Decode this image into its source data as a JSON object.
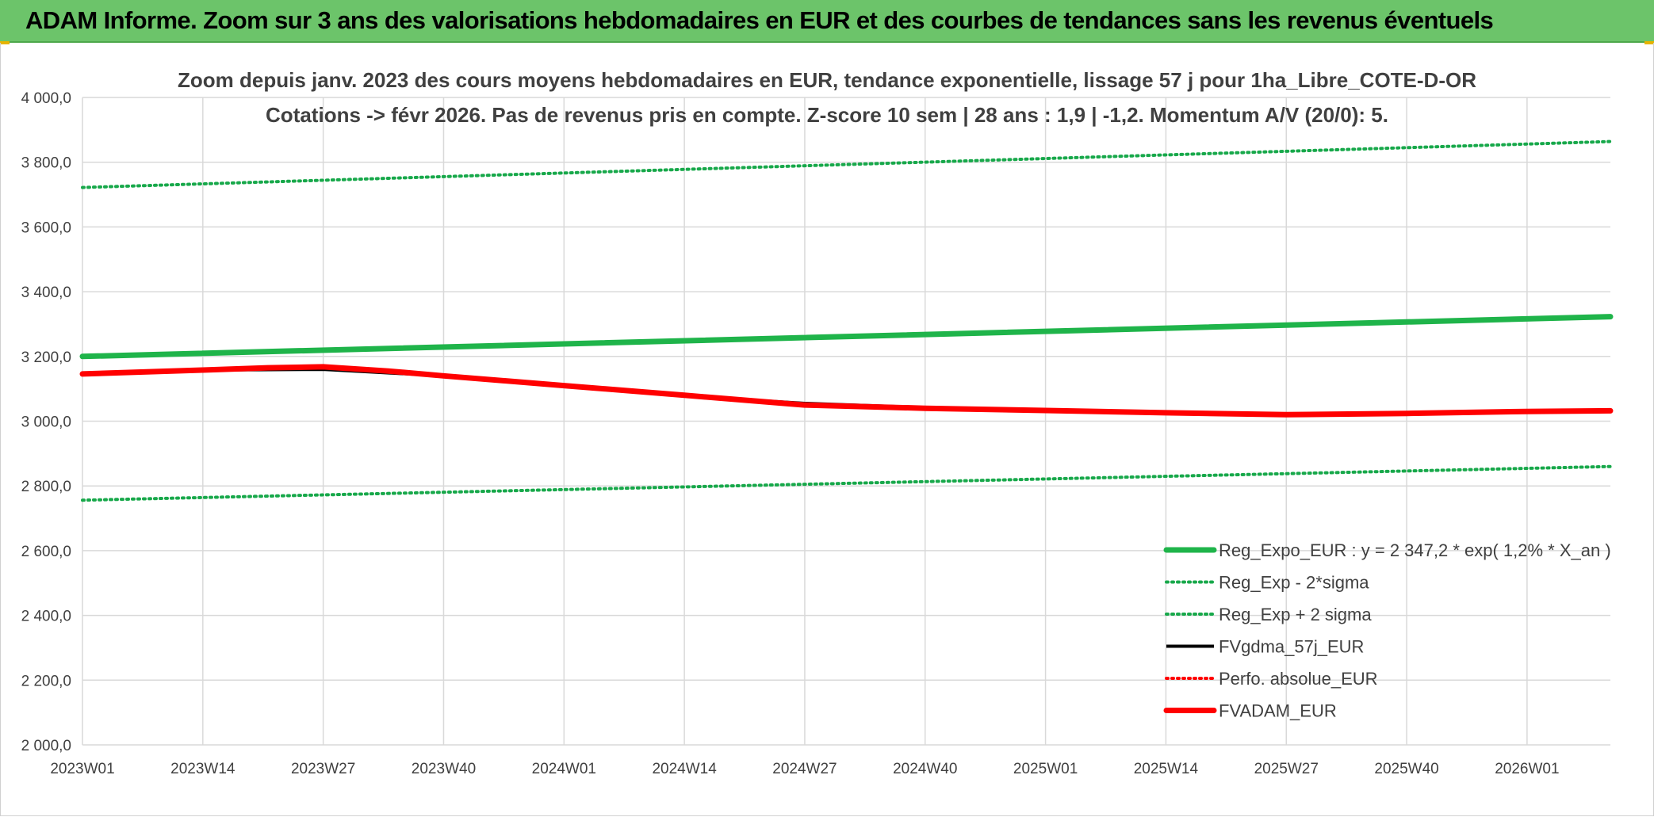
{
  "banner": {
    "title": "ADAM Informe. Zoom sur 3 ans des valorisations hebdomadaires en EUR et des courbes de tendances sans les revenus éventuels"
  },
  "colors": {
    "banner_bg": "#6cc46a",
    "reg_green": "#1fb44a",
    "sigma_green": "#17a84a",
    "black": "#000000",
    "red": "#ff0000",
    "grid": "#d9d9d9"
  },
  "chart_data": {
    "type": "line",
    "title_lines": [
      "Zoom depuis janv. 2023 des cours moyens hebdomadaires en EUR, tendance exponentielle, lissage 57 j pour 1ha_Libre_COTE-D-OR",
      "Cotations -> févr 2026. Pas de revenus pris en compte. Z-score 10 sem | 28 ans : 1,9 | -1,2. Momentum A/V (20/0): 5."
    ],
    "ylim": [
      2000,
      4000
    ],
    "y_ticks": [
      "2 000,0",
      "2 200,0",
      "2 400,0",
      "2 600,0",
      "2 800,0",
      "3 000,0",
      "3 200,0",
      "3 400,0",
      "3 600,0",
      "3 800,0",
      "4 000,0"
    ],
    "y_tick_values": [
      2000,
      2200,
      2400,
      2600,
      2800,
      3000,
      3200,
      3400,
      3600,
      3800,
      4000
    ],
    "x_ticks": [
      "2023W01",
      "2023W14",
      "2023W27",
      "2023W40",
      "2024W01",
      "2024W14",
      "2024W27",
      "2024W40",
      "2025W01",
      "2025W14",
      "2025W27",
      "2025W40",
      "2026W01"
    ],
    "x_tick_index": [
      0,
      13,
      26,
      39,
      52,
      65,
      78,
      91,
      104,
      117,
      130,
      143,
      156
    ],
    "x_last_index": 165,
    "legend_position": "bottom-right",
    "series": [
      {
        "name": "Reg_Expo_EUR : y = 2 347,2 * exp( 1,2% *  X_an )",
        "style": "solid-thick",
        "color": "#1fb44a",
        "points": [
          [
            0,
            3200
          ],
          [
            165,
            3323
          ]
        ]
      },
      {
        "name": "Reg_Exp - 2*sigma",
        "style": "dotted",
        "color": "#17a84a",
        "points": [
          [
            0,
            2756
          ],
          [
            165,
            2860
          ]
        ]
      },
      {
        "name": "Reg_Exp + 2 sigma",
        "style": "dotted",
        "color": "#17a84a",
        "points": [
          [
            0,
            3722
          ],
          [
            165,
            3864
          ]
        ]
      },
      {
        "name": "FVgdma_57j_EUR",
        "style": "solid",
        "color": "#000000",
        "points": [
          [
            0,
            3146
          ],
          [
            13,
            3158
          ],
          [
            26,
            3160
          ],
          [
            39,
            3140
          ],
          [
            52,
            3110
          ],
          [
            65,
            3078
          ],
          [
            78,
            3055
          ],
          [
            91,
            3042
          ],
          [
            104,
            3033
          ],
          [
            117,
            3026
          ],
          [
            130,
            3020
          ],
          [
            143,
            3024
          ],
          [
            156,
            3030
          ],
          [
            165,
            3032
          ]
        ]
      },
      {
        "name": "Perfo. absolue_EUR",
        "style": "dotted",
        "color": "#ff0000",
        "points": []
      },
      {
        "name": "FVADAM_EUR",
        "style": "solid-thick",
        "color": "#ff0000",
        "points": [
          [
            0,
            3146
          ],
          [
            13,
            3158
          ],
          [
            20,
            3165
          ],
          [
            26,
            3168
          ],
          [
            33,
            3155
          ],
          [
            39,
            3140
          ],
          [
            52,
            3110
          ],
          [
            65,
            3080
          ],
          [
            78,
            3050
          ],
          [
            91,
            3040
          ],
          [
            104,
            3033
          ],
          [
            117,
            3026
          ],
          [
            130,
            3020
          ],
          [
            143,
            3024
          ],
          [
            156,
            3030
          ],
          [
            165,
            3032
          ]
        ]
      }
    ]
  }
}
